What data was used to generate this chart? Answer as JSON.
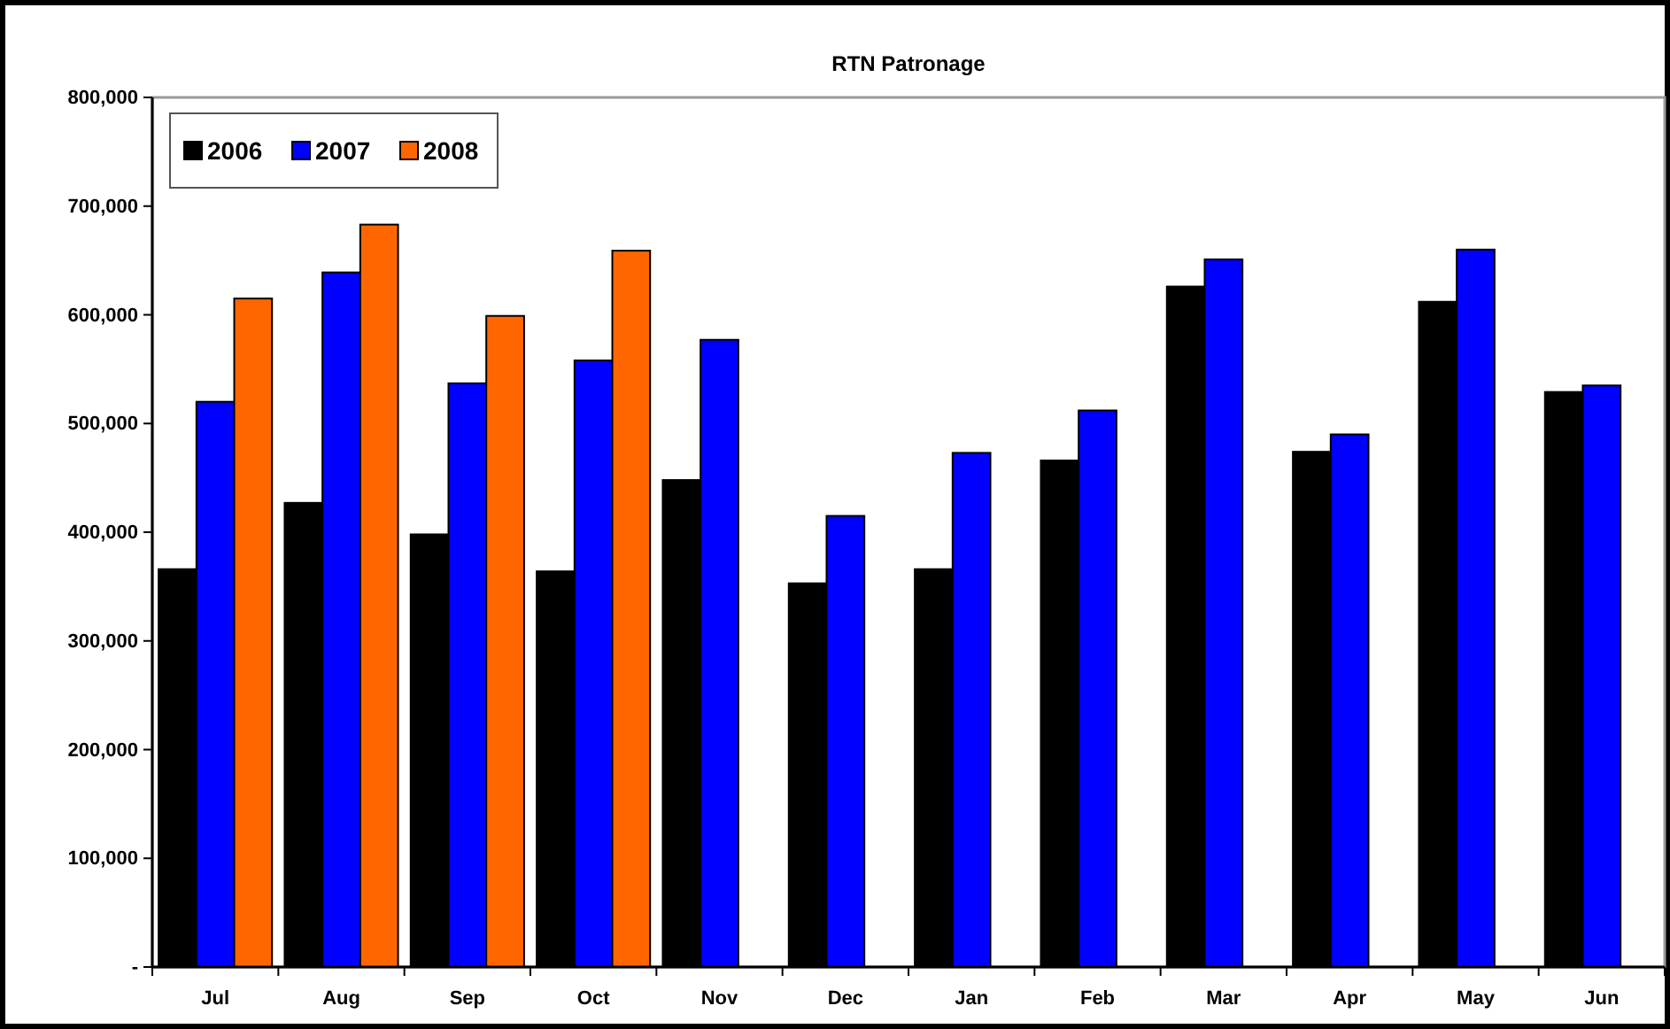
{
  "chart_data": {
    "type": "bar",
    "title": "RTN Patronage",
    "categories": [
      "Jul",
      "Aug",
      "Sep",
      "Oct",
      "Nov",
      "Dec",
      "Jan",
      "Feb",
      "Mar",
      "Apr",
      "May",
      "Jun"
    ],
    "series": [
      {
        "name": "2006",
        "color": "#000000",
        "values": [
          366000,
          427000,
          398000,
          364000,
          448000,
          353000,
          366000,
          466000,
          626000,
          474000,
          612000,
          529000
        ]
      },
      {
        "name": "2007",
        "color": "#0000ff",
        "values": [
          520000,
          639000,
          537000,
          558000,
          577000,
          415000,
          473000,
          512000,
          651000,
          490000,
          660000,
          535000
        ]
      },
      {
        "name": "2008",
        "color": "#ff6600",
        "values": [
          615000,
          683000,
          599000,
          659000,
          null,
          null,
          null,
          null,
          null,
          null,
          null,
          null
        ]
      }
    ],
    "ylim": [
      0,
      800000
    ],
    "yticks": [
      {
        "value": 0,
        "label": "-"
      },
      {
        "value": 100000,
        "label": "100,000"
      },
      {
        "value": 200000,
        "label": "200,000"
      },
      {
        "value": 300000,
        "label": "300,000"
      },
      {
        "value": 400000,
        "label": "400,000"
      },
      {
        "value": 500000,
        "label": "500,000"
      },
      {
        "value": 600000,
        "label": "600,000"
      },
      {
        "value": 700000,
        "label": "700,000"
      },
      {
        "value": 800000,
        "label": "800,000"
      }
    ],
    "grid": false,
    "legend": "top left"
  }
}
